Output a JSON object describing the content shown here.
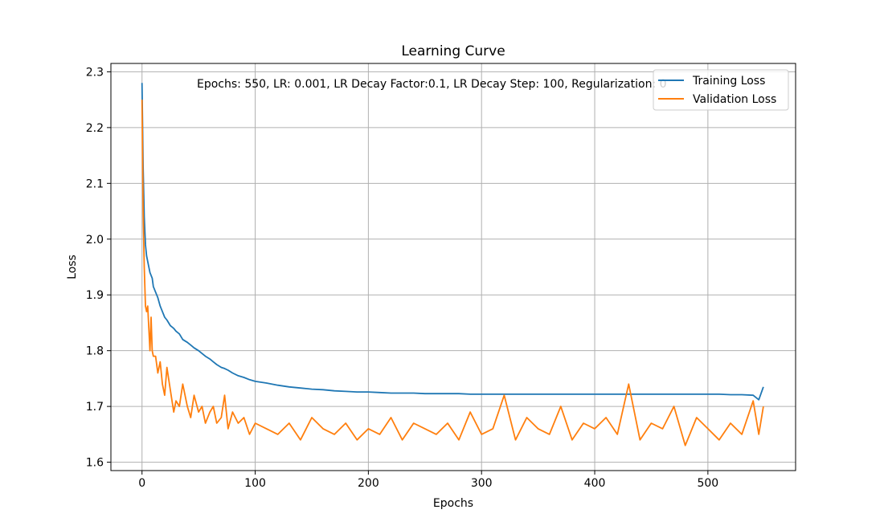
{
  "chart_data": {
    "type": "line",
    "title": "Learning Curve",
    "xlabel": "Epochs",
    "ylabel": "Loss",
    "xlim": [
      -27.5,
      577.5
    ],
    "ylim": [
      1.585,
      2.315
    ],
    "xticks": [
      0,
      100,
      200,
      300,
      400,
      500
    ],
    "yticks": [
      1.6,
      1.7,
      1.8,
      1.9,
      2.0,
      2.1,
      2.2,
      2.3
    ],
    "grid": true,
    "legend_position": "top-right",
    "annotation": "Epochs: 550, LR: 0.001, LR Decay Factor:0.1, LR Decay Step: 100, Regularization: 0",
    "series": [
      {
        "name": "Training Loss",
        "color": "#1f77b4",
        "x": [
          0,
          1,
          2,
          3,
          4,
          5,
          6,
          7,
          8,
          9,
          10,
          12,
          14,
          16,
          18,
          20,
          22,
          25,
          28,
          30,
          33,
          36,
          40,
          43,
          46,
          50,
          53,
          56,
          60,
          63,
          66,
          70,
          73,
          76,
          80,
          85,
          90,
          95,
          100,
          110,
          120,
          130,
          140,
          150,
          160,
          170,
          180,
          190,
          200,
          210,
          220,
          230,
          240,
          250,
          260,
          270,
          280,
          290,
          300,
          310,
          320,
          330,
          340,
          350,
          360,
          370,
          380,
          390,
          400,
          410,
          420,
          430,
          440,
          450,
          460,
          470,
          480,
          490,
          500,
          510,
          520,
          530,
          540,
          545,
          549
        ],
        "y": [
          2.28,
          2.13,
          2.04,
          1.99,
          1.97,
          1.96,
          1.95,
          1.94,
          1.935,
          1.93,
          1.915,
          1.905,
          1.895,
          1.88,
          1.87,
          1.86,
          1.855,
          1.845,
          1.84,
          1.835,
          1.83,
          1.82,
          1.815,
          1.81,
          1.805,
          1.8,
          1.795,
          1.79,
          1.785,
          1.78,
          1.775,
          1.77,
          1.768,
          1.765,
          1.76,
          1.755,
          1.752,
          1.748,
          1.745,
          1.742,
          1.738,
          1.735,
          1.733,
          1.731,
          1.73,
          1.728,
          1.727,
          1.726,
          1.726,
          1.725,
          1.724,
          1.724,
          1.724,
          1.723,
          1.723,
          1.723,
          1.723,
          1.722,
          1.722,
          1.722,
          1.722,
          1.722,
          1.722,
          1.722,
          1.722,
          1.722,
          1.722,
          1.722,
          1.722,
          1.722,
          1.722,
          1.722,
          1.722,
          1.722,
          1.722,
          1.722,
          1.722,
          1.722,
          1.722,
          1.722,
          1.721,
          1.721,
          1.72,
          1.712,
          1.735
        ]
      },
      {
        "name": "Validation Loss",
        "color": "#ff7f0e",
        "x": [
          0,
          1,
          2,
          3,
          4,
          5,
          6,
          7,
          8,
          9,
          10,
          12,
          14,
          16,
          18,
          20,
          22,
          25,
          28,
          30,
          33,
          36,
          40,
          43,
          46,
          50,
          53,
          56,
          60,
          63,
          66,
          70,
          73,
          76,
          80,
          85,
          90,
          95,
          100,
          110,
          120,
          130,
          140,
          150,
          160,
          170,
          180,
          190,
          200,
          210,
          220,
          230,
          240,
          250,
          260,
          270,
          280,
          290,
          300,
          310,
          320,
          330,
          340,
          350,
          360,
          370,
          380,
          390,
          400,
          410,
          420,
          430,
          440,
          450,
          460,
          470,
          480,
          490,
          500,
          510,
          520,
          530,
          540,
          545,
          549
        ],
        "y": [
          2.25,
          2.05,
          1.95,
          1.88,
          1.87,
          1.88,
          1.84,
          1.8,
          1.86,
          1.8,
          1.79,
          1.79,
          1.76,
          1.78,
          1.74,
          1.72,
          1.77,
          1.73,
          1.69,
          1.71,
          1.7,
          1.74,
          1.7,
          1.68,
          1.72,
          1.69,
          1.7,
          1.67,
          1.69,
          1.7,
          1.67,
          1.68,
          1.72,
          1.66,
          1.69,
          1.67,
          1.68,
          1.65,
          1.67,
          1.66,
          1.65,
          1.67,
          1.64,
          1.68,
          1.66,
          1.65,
          1.67,
          1.64,
          1.66,
          1.65,
          1.68,
          1.64,
          1.67,
          1.66,
          1.65,
          1.67,
          1.64,
          1.69,
          1.65,
          1.66,
          1.72,
          1.64,
          1.68,
          1.66,
          1.65,
          1.7,
          1.64,
          1.67,
          1.66,
          1.68,
          1.65,
          1.74,
          1.64,
          1.67,
          1.66,
          1.7,
          1.63,
          1.68,
          1.66,
          1.64,
          1.67,
          1.65,
          1.71,
          1.65,
          1.7
        ]
      }
    ]
  }
}
